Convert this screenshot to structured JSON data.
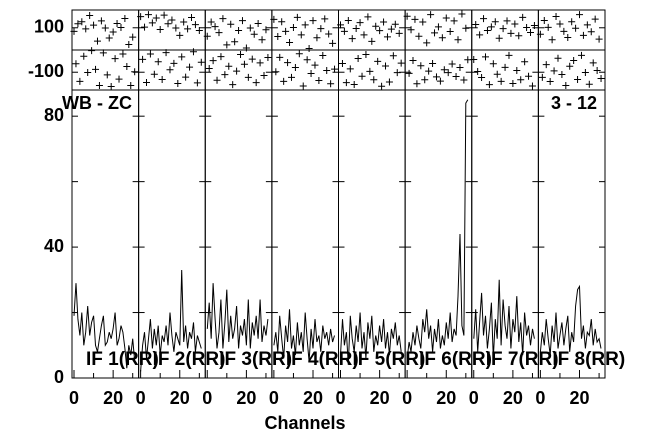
{
  "chart_data": {
    "type": "line",
    "xlabel": "Channels",
    "baseline_label": "WB - ZC",
    "scan_label": "3 - 12",
    "x_range": [
      0,
      32
    ],
    "x_ticks": [
      0,
      20
    ],
    "phase": {
      "ylim": [
        -180,
        180
      ],
      "yticks": [
        100,
        -100
      ],
      "reference_line": 0
    },
    "amplitude": {
      "ylim": [
        0,
        88
      ],
      "yticks": [
        0,
        40,
        80
      ]
    },
    "panels": [
      {
        "label": "IF 1(RR)",
        "amplitude": [
          19,
          29,
          18,
          13,
          20,
          10,
          14,
          22,
          13,
          17,
          19,
          10,
          8,
          12,
          16,
          19,
          10,
          11,
          14,
          12,
          15,
          20,
          10,
          12,
          16,
          14,
          9,
          3,
          10,
          7,
          12,
          5
        ],
        "phase": [
          84,
          -62,
          118,
          -141,
          127,
          -28,
          95,
          -101,
          155,
          -3,
          112,
          -87,
          40,
          -160,
          131,
          -13,
          99,
          -112,
          54,
          -164,
          81,
          -39,
          119,
          -131,
          101,
          -18,
          142,
          -74,
          25,
          -160,
          58,
          -98
        ]
      },
      {
        "label": "IF 2(RR)",
        "amplitude": [
          2,
          10,
          14,
          6,
          12,
          18,
          9,
          15,
          10,
          16,
          7,
          13,
          11,
          16,
          10,
          20,
          13,
          8,
          14,
          12,
          10,
          33,
          11,
          16,
          9,
          14,
          12,
          17,
          8,
          13,
          11,
          9
        ],
        "phase": [
          150,
          -42,
          103,
          -146,
          159,
          -18,
          122,
          -109,
          144,
          -53,
          92,
          -133,
          157,
          -12,
          118,
          -89,
          135,
          -60,
          99,
          -151,
          66,
          -31,
          126,
          -122,
          95,
          -77,
          146,
          -8,
          114,
          -148,
          88,
          -55
        ]
      },
      {
        "label": "IF 3(RR)",
        "amplitude": [
          15,
          23,
          12,
          29,
          18,
          9,
          14,
          24,
          9,
          17,
          27,
          11,
          19,
          12,
          15,
          22,
          9,
          16,
          13,
          18,
          10,
          24,
          9,
          17,
          13,
          19,
          12,
          24,
          11,
          16,
          13,
          18
        ],
        "phase": [
          62,
          -83,
          126,
          -48,
          105,
          -136,
          78,
          -30,
          141,
          -111,
          23,
          -73,
          116,
          -156,
          37,
          -95,
          88,
          -20,
          132,
          -64,
          9,
          -123,
          99,
          -41,
          71,
          -147,
          119,
          -58,
          46,
          -115,
          91,
          -34
        ]
      },
      {
        "label": "IF 4(RR)",
        "amplitude": [
          10,
          14,
          8,
          19,
          12,
          6,
          16,
          11,
          21,
          9,
          13,
          7,
          17,
          10,
          14,
          8,
          20,
          12,
          5,
          15,
          9,
          18,
          11,
          13,
          8,
          16,
          12,
          14,
          10,
          15,
          11,
          13
        ],
        "phase": [
          138,
          -98,
          61,
          -33,
          127,
          -141,
          84,
          -57,
          34,
          -123,
          101,
          -79,
          147,
          -17,
          68,
          -162,
          113,
          -44,
          7,
          -106,
          132,
          -68,
          55,
          -137,
          96,
          -25,
          140,
          -92,
          72,
          -152,
          30,
          -86
        ]
      },
      {
        "label": "IF 5(RR)",
        "amplitude": [
          7,
          18,
          10,
          14,
          4,
          19,
          12,
          8,
          16,
          11,
          20,
          9,
          14,
          6,
          17,
          12,
          19,
          8,
          13,
          10,
          16,
          11,
          18,
          9,
          14,
          7,
          15,
          12,
          17,
          10,
          13,
          8
        ],
        "phase": [
          113,
          -61,
          84,
          -147,
          133,
          -85,
          51,
          -155,
          97,
          -38,
          123,
          -118,
          68,
          -20,
          149,
          -96,
          39,
          -134,
          107,
          -51,
          87,
          -163,
          126,
          -72,
          59,
          -144,
          94,
          -26,
          116,
          -102,
          75,
          -59
        ]
      },
      {
        "label": "IF 6(RR)",
        "amplitude": [
          6,
          11,
          8,
          14,
          10,
          16,
          12,
          9,
          18,
          14,
          21,
          12,
          16,
          8,
          15,
          11,
          18,
          9,
          13,
          10,
          17,
          12,
          20,
          11,
          15,
          13,
          25,
          44,
          16,
          13,
          84,
          85
        ],
        "phase": [
          152,
          -105,
          91,
          -47,
          138,
          -152,
          62,
          -71,
          126,
          -134,
          32,
          -95,
          159,
          -61,
          77,
          -121,
          104,
          -140,
          55,
          -89,
          144,
          -102,
          83,
          -63,
          131,
          -119,
          46,
          -79,
          162,
          -135,
          98,
          -44
        ]
      },
      {
        "label": "IF 7(RR)",
        "amplitude": [
          12,
          21,
          8,
          17,
          26,
          13,
          19,
          9,
          15,
          23,
          6,
          18,
          12,
          30,
          10,
          24,
          16,
          12,
          22,
          9,
          18,
          14,
          25,
          11,
          17,
          7,
          20,
          13,
          16,
          10,
          15,
          12
        ],
        "phase": [
          -43,
          115,
          -97,
          68,
          -124,
          141,
          -31,
          88,
          -156,
          104,
          -62,
          127,
          -109,
          53,
          -141,
          96,
          -78,
          131,
          -24,
          75,
          -151,
          117,
          -92,
          64,
          -134,
          147,
          -53,
          101,
          -118,
          79,
          -162,
          110
        ]
      },
      {
        "label": "IF 8(RR)",
        "amplitude": [
          8,
          14,
          10,
          18,
          12,
          7,
          16,
          11,
          20,
          9,
          13,
          17,
          10,
          15,
          19,
          8,
          14,
          11,
          22,
          27,
          28,
          12,
          16,
          9,
          14,
          13,
          18,
          10,
          15,
          11,
          12,
          9
        ],
        "phase": [
          71,
          -123,
          133,
          -66,
          102,
          -142,
          46,
          -94,
          151,
          -37,
          117,
          -110,
          84,
          -160,
          56,
          -73,
          127,
          -47,
          98,
          -133,
          159,
          -24,
          66,
          -101,
          113,
          -154,
          82,
          -58,
          139,
          -92,
          49,
          -128
        ]
      }
    ]
  }
}
